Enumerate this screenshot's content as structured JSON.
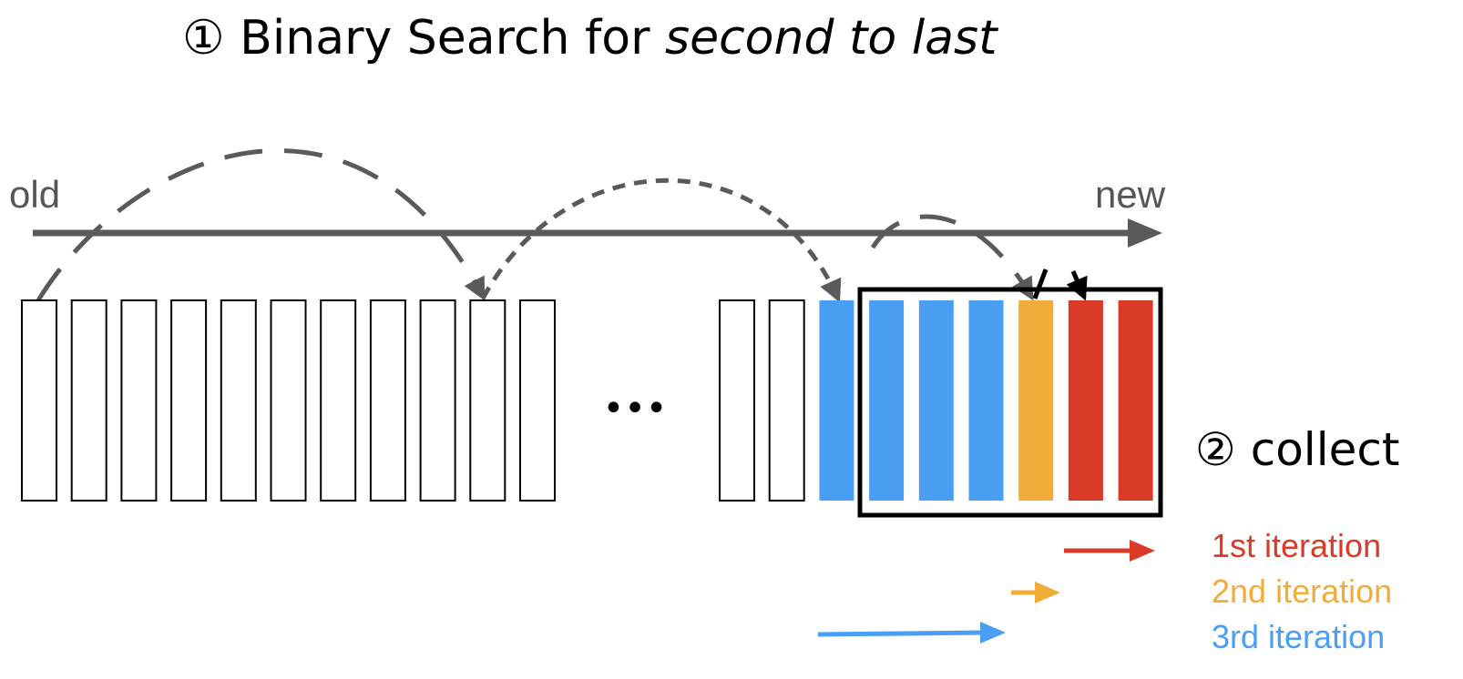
{
  "title": {
    "step_marker": "①",
    "prefix": "Binary Search for",
    "emphasis": "second to last"
  },
  "axis": {
    "start_label": "old",
    "end_label": "new"
  },
  "ellipsis": "•••",
  "collect_label": "② collect",
  "cells": {
    "left_group": [
      "empty",
      "empty",
      "empty",
      "empty",
      "empty",
      "empty",
      "empty",
      "empty",
      "empty",
      "empty",
      "empty"
    ],
    "right_group": [
      "empty",
      "empty",
      "blue",
      "blue",
      "blue",
      "blue",
      "orange",
      "red",
      "red"
    ]
  },
  "legend": [
    {
      "label": "1st iteration",
      "color": "#d93b27"
    },
    {
      "label": "2nd iteration",
      "color": "#f0ad3a"
    },
    {
      "label": "3rd iteration",
      "color": "#4a9ff5"
    }
  ],
  "colors": {
    "blue": "#4a9ff5",
    "orange": "#f0ad3a",
    "red": "#d93b27",
    "gray": "#5a5a5a"
  }
}
